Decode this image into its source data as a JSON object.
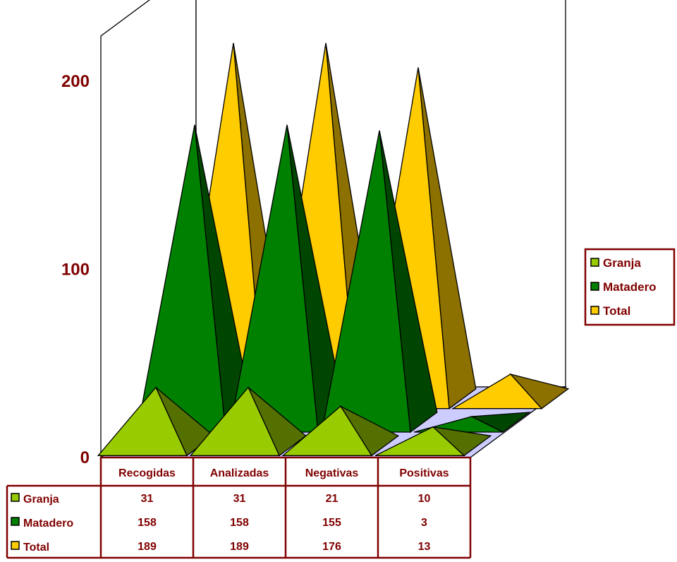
{
  "chart_data": {
    "type": "bar",
    "style": "3d-pyramid",
    "categories": [
      "Recogidas",
      "Analizadas",
      "Negativas",
      "Positivas"
    ],
    "series": [
      {
        "name": "Granja",
        "values": [
          31,
          31,
          21,
          10
        ],
        "color": "#99cc00"
      },
      {
        "name": "Matadero",
        "values": [
          158,
          158,
          155,
          3
        ],
        "color": "#008000"
      },
      {
        "name": "Total",
        "values": [
          189,
          189,
          176,
          13
        ],
        "color": "#ffcc00"
      }
    ],
    "yticks": [
      0,
      100,
      200
    ],
    "ylim": [
      0,
      200
    ],
    "legend_position": "right",
    "data_table": true,
    "text_color": "#800000",
    "floor_color": "#ccccff"
  }
}
